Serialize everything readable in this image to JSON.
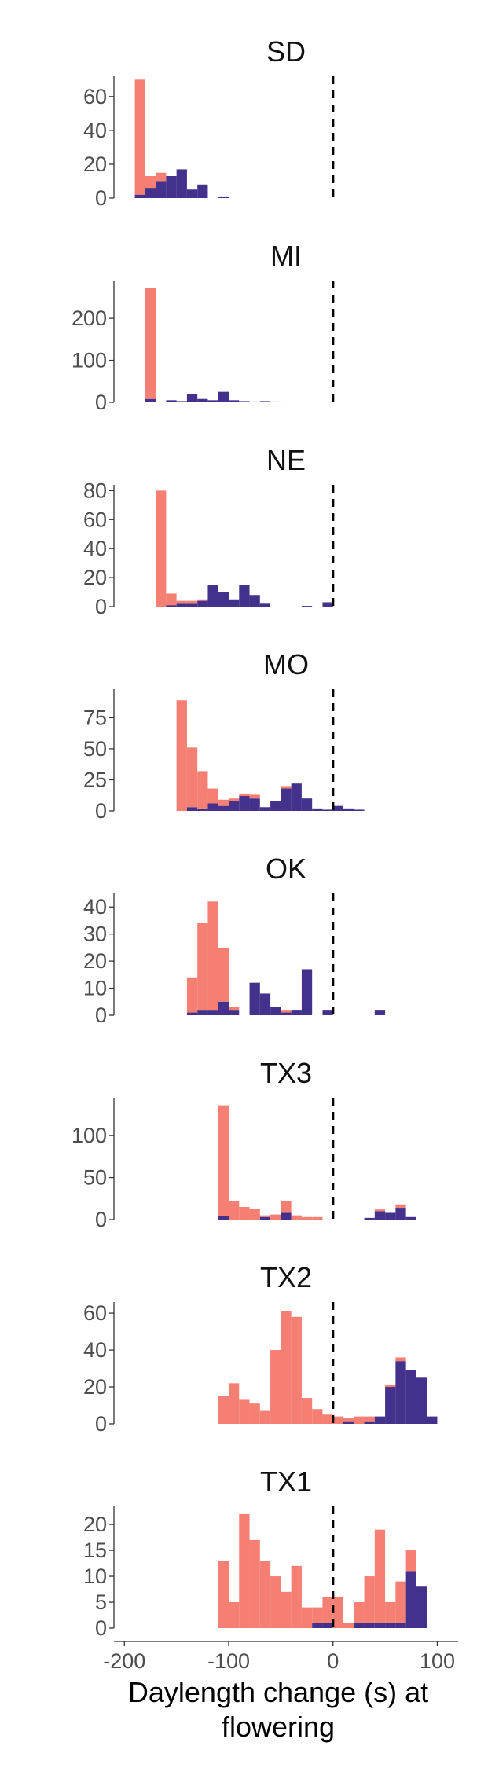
{
  "figure": {
    "xlabel_line1": "Daylength change (s) at",
    "xlabel_line2": "flowering"
  },
  "colors": {
    "series_a": "#F47F72",
    "series_b": "#43318C",
    "axis": "#333333",
    "reference_line": "#000000"
  },
  "chart_data": [
    {
      "type": "histogram",
      "title": "SD",
      "bin_width": 10,
      "xlim": [
        -210,
        120
      ],
      "ylim": [
        0,
        72
      ],
      "yticks": [
        0,
        20,
        40,
        60
      ],
      "reference_line_x": 0,
      "stacked": true,
      "bins": [
        -185,
        -175,
        -165,
        -155,
        -145,
        -135,
        -125,
        -115,
        -105,
        -95
      ],
      "series": [
        {
          "color": "#43318C",
          "values": [
            2,
            6,
            10,
            13,
            17,
            5,
            8,
            0,
            0.5,
            0
          ]
        },
        {
          "color": "#F47F72",
          "values": [
            68,
            7,
            5,
            0,
            0,
            0,
            0,
            0,
            0,
            0
          ]
        }
      ]
    },
    {
      "type": "histogram",
      "title": "MI",
      "bin_width": 10,
      "xlim": [
        -210,
        120
      ],
      "ylim": [
        0,
        290
      ],
      "yticks": [
        0,
        100,
        200
      ],
      "reference_line_x": 0,
      "stacked": true,
      "bins": [
        -175,
        -165,
        -155,
        -145,
        -135,
        -125,
        -115,
        -105,
        -95,
        -85,
        -75,
        -65,
        -55,
        -45
      ],
      "series": [
        {
          "color": "#43318C",
          "values": [
            8,
            0,
            5,
            3,
            20,
            8,
            5,
            25,
            5,
            3,
            2,
            3,
            2,
            0
          ]
        },
        {
          "color": "#F47F72",
          "values": [
            265,
            0,
            0,
            0,
            0,
            0,
            0,
            0,
            0,
            0,
            0,
            0,
            0,
            0
          ]
        }
      ]
    },
    {
      "type": "histogram",
      "title": "NE",
      "bin_width": 10,
      "xlim": [
        -210,
        120
      ],
      "ylim": [
        0,
        84
      ],
      "yticks": [
        0,
        20,
        40,
        60,
        80
      ],
      "reference_line_x": 0,
      "stacked": true,
      "bins": [
        -165,
        -155,
        -145,
        -135,
        -125,
        -115,
        -105,
        -95,
        -85,
        -75,
        -65,
        -55,
        -45,
        -35,
        -25,
        -5
      ],
      "series": [
        {
          "color": "#43318C",
          "values": [
            0,
            1,
            2,
            2,
            4,
            15,
            10,
            5,
            15,
            8,
            2,
            0,
            0,
            0,
            0.5,
            3
          ]
        },
        {
          "color": "#F47F72",
          "values": [
            80,
            8,
            2,
            2,
            1,
            0,
            0,
            0,
            0,
            0,
            0,
            0,
            0,
            0,
            0,
            0
          ]
        }
      ]
    },
    {
      "type": "histogram",
      "title": "MO",
      "bin_width": 10,
      "xlim": [
        -210,
        120
      ],
      "ylim": [
        0,
        98
      ],
      "yticks": [
        0,
        25,
        50,
        75
      ],
      "reference_line_x": 0,
      "stacked": true,
      "bins": [
        -145,
        -135,
        -125,
        -115,
        -105,
        -95,
        -85,
        -75,
        -65,
        -55,
        -45,
        -35,
        -25,
        -15,
        -5,
        5,
        15,
        25
      ],
      "series": [
        {
          "color": "#43318C",
          "values": [
            0,
            3,
            2,
            6,
            4,
            8,
            12,
            10,
            3,
            8,
            18,
            22,
            10,
            2,
            1,
            4,
            2,
            1
          ]
        },
        {
          "color": "#F47F72",
          "values": [
            89,
            48,
            30,
            12,
            5,
            2,
            2,
            3,
            0,
            0,
            2,
            0,
            0,
            0,
            0,
            0,
            0,
            0
          ]
        }
      ]
    },
    {
      "type": "histogram",
      "title": "OK",
      "bin_width": 10,
      "xlim": [
        -210,
        120
      ],
      "ylim": [
        0,
        45
      ],
      "yticks": [
        0,
        10,
        20,
        30,
        40
      ],
      "reference_line_x": 0,
      "stacked": true,
      "bins": [
        -135,
        -125,
        -115,
        -105,
        -95,
        -75,
        -65,
        -55,
        -45,
        -35,
        -25,
        -5,
        45
      ],
      "series": [
        {
          "color": "#43318C",
          "values": [
            1,
            2,
            2,
            5,
            2,
            12,
            8,
            3,
            1,
            2,
            17,
            2,
            2
          ]
        },
        {
          "color": "#F47F72",
          "values": [
            13,
            32,
            40,
            20,
            1,
            0,
            0,
            0,
            1,
            0,
            0,
            0,
            0
          ]
        }
      ]
    },
    {
      "type": "histogram",
      "title": "TX3",
      "bin_width": 10,
      "xlim": [
        -210,
        120
      ],
      "ylim": [
        0,
        145
      ],
      "yticks": [
        0,
        50,
        100
      ],
      "reference_line_x": 0,
      "stacked": true,
      "bins": [
        -105,
        -95,
        -85,
        -75,
        -65,
        -55,
        -45,
        -35,
        -25,
        -15,
        -5,
        35,
        45,
        55,
        65,
        75
      ],
      "series": [
        {
          "color": "#43318C",
          "values": [
            4,
            0,
            0,
            0,
            3,
            0,
            8,
            0,
            0,
            0,
            0,
            2,
            10,
            8,
            14,
            3
          ]
        },
        {
          "color": "#F47F72",
          "values": [
            132,
            22,
            15,
            13,
            2,
            6,
            14,
            5,
            3,
            3,
            0,
            0,
            2,
            0,
            4,
            0
          ]
        }
      ]
    },
    {
      "type": "histogram",
      "title": "TX2",
      "bin_width": 10,
      "xlim": [
        -210,
        120
      ],
      "ylim": [
        0,
        66
      ],
      "yticks": [
        0,
        20,
        40,
        60
      ],
      "reference_line_x": 0,
      "stacked": true,
      "bins": [
        -105,
        -95,
        -85,
        -75,
        -65,
        -55,
        -45,
        -35,
        -25,
        -15,
        -5,
        5,
        15,
        25,
        35,
        45,
        55,
        65,
        75,
        85,
        95
      ],
      "series": [
        {
          "color": "#43318C",
          "values": [
            0,
            0,
            0,
            0,
            0,
            0,
            0,
            0,
            0,
            0,
            0,
            0,
            1,
            0,
            1,
            4,
            20,
            34,
            29,
            25,
            4
          ]
        },
        {
          "color": "#F47F72",
          "values": [
            15,
            22,
            13,
            11,
            7,
            40,
            61,
            58,
            14,
            8,
            5,
            4,
            2,
            4,
            3,
            0,
            1,
            2,
            0,
            0,
            0
          ]
        }
      ]
    },
    {
      "type": "histogram",
      "title": "TX1",
      "bin_width": 10,
      "xlim": [
        -210,
        120
      ],
      "ylim": [
        0,
        23.5
      ],
      "yticks": [
        0,
        5,
        10,
        15,
        20
      ],
      "reference_line_x": 0,
      "stacked": true,
      "bins": [
        -105,
        -95,
        -85,
        -75,
        -65,
        -55,
        -45,
        -35,
        -25,
        -15,
        -5,
        5,
        15,
        25,
        35,
        45,
        55,
        65,
        75,
        85
      ],
      "series": [
        {
          "color": "#43318C",
          "values": [
            0,
            0,
            0,
            0,
            0,
            0,
            0,
            0,
            0,
            1,
            1,
            0,
            0,
            1,
            1,
            1,
            1,
            1,
            11,
            8
          ]
        },
        {
          "color": "#F47F72",
          "values": [
            13,
            5,
            22,
            17,
            13,
            10,
            7,
            12,
            4,
            3,
            5,
            6,
            1,
            4,
            9,
            18,
            4,
            8,
            4,
            0
          ]
        }
      ]
    }
  ],
  "x_axis": {
    "ticks": [
      -200,
      -100,
      0,
      100
    ],
    "tick_labels": [
      "-200",
      "-100",
      "0",
      "100"
    ]
  }
}
